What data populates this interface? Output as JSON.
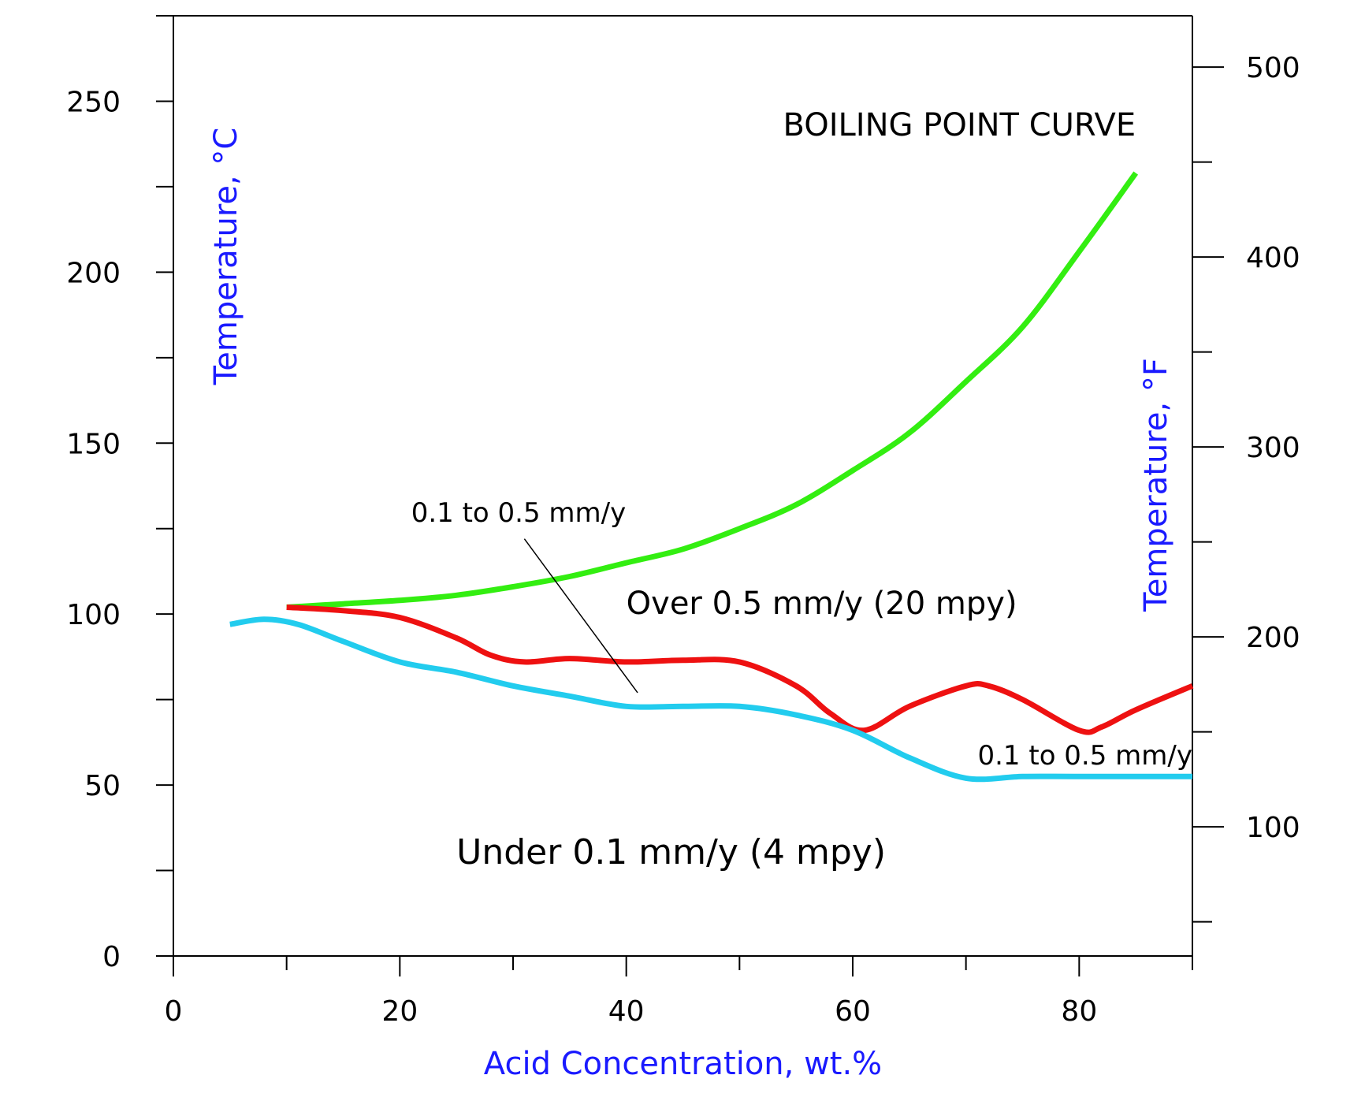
{
  "chart_data": {
    "type": "line",
    "xlabel": "Acid Concentration, wt.%",
    "ylabel": "Temperature, °C",
    "y2label": "Temperature, °F",
    "xlim": [
      0,
      90
    ],
    "ylim": [
      0,
      275
    ],
    "y2lim": [
      32,
      527
    ],
    "x_ticks": [
      0,
      20,
      40,
      60,
      80
    ],
    "y_ticks": [
      0,
      50,
      100,
      150,
      200,
      250
    ],
    "y2_ticks": [
      100,
      200,
      300,
      400,
      500
    ],
    "grid": false,
    "colors": {
      "axis_title": "#1a1aff",
      "boiling_curve": "#33ee11",
      "upper_iso": "#ee1111",
      "lower_iso": "#22ccee"
    },
    "series": [
      {
        "key": "boiling",
        "x": [
          10,
          15,
          20,
          25,
          30,
          35,
          40,
          45,
          50,
          55,
          60,
          65,
          70,
          75,
          80,
          85
        ],
        "y": [
          102,
          103,
          104,
          105.5,
          108,
          111,
          115,
          119,
          125,
          132,
          142,
          153,
          168,
          184,
          206,
          229
        ]
      },
      {
        "key": "upper_iso",
        "x": [
          10,
          15,
          20,
          25,
          28,
          31,
          35,
          40,
          45,
          50,
          55,
          58,
          61,
          65,
          70,
          72,
          75,
          80,
          82,
          85,
          90
        ],
        "y": [
          102,
          101,
          99,
          93,
          88,
          86,
          87,
          86,
          86.5,
          86,
          79,
          71,
          66,
          73,
          79,
          79,
          75,
          66,
          67,
          72,
          79
        ]
      },
      {
        "key": "lower_iso",
        "x": [
          5,
          8,
          11,
          15,
          20,
          25,
          30,
          35,
          40,
          45,
          50,
          55,
          60,
          65,
          70,
          75,
          80,
          90
        ],
        "y": [
          97,
          98.5,
          97,
          92,
          86,
          83,
          79,
          76,
          73,
          73,
          73,
          70.5,
          66,
          58,
          52,
          52.5,
          52.5,
          52.5
        ]
      }
    ],
    "annotations": [
      {
        "text": "BOILING POINT CURVE",
        "x": 85,
        "y": 240,
        "anchor": "end",
        "size": 40,
        "color": "#33ee11"
      },
      {
        "text": "0.1 to 0.5 mm/y",
        "x": 21,
        "y": 127,
        "anchor": "start",
        "size": 34,
        "color": "#000000"
      },
      {
        "text": "Over 0.5 mm/y (20 mpy)",
        "x": 40,
        "y": 100,
        "anchor": "start",
        "size": 40,
        "color": "#000000"
      },
      {
        "text": "0.1 to 0.5 mm/y",
        "x": 90,
        "y": 56,
        "anchor": "end",
        "size": 34,
        "color": "#000000"
      },
      {
        "text": "Under 0.1 mm/y (4 mpy)",
        "x": 25,
        "y": 27,
        "anchor": "start",
        "size": 44,
        "color": "#000000"
      }
    ],
    "leader_line": {
      "x1": 31,
      "y1": 122,
      "x2": 41,
      "y2": 77
    }
  }
}
